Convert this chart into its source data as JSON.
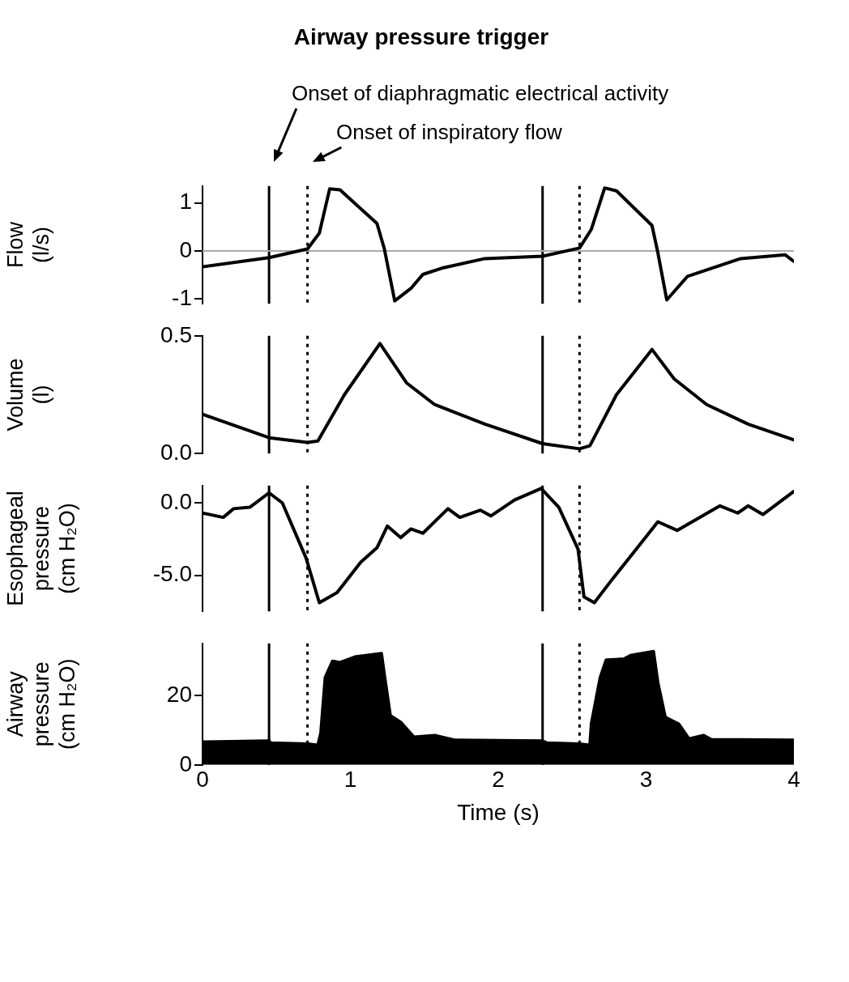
{
  "chart_data": [
    {
      "type": "line",
      "title": "Airway pressure trigger",
      "annotations": [
        "Onset of diaphragmatic electrical activity",
        "Onset of inspiratory flow"
      ],
      "ylabel": "Flow (l/s)",
      "color": "#000000",
      "marker": "none",
      "tick_labels": "y",
      "x": [
        0,
        0.45,
        0.71,
        0.79,
        0.86,
        0.93,
        1.18,
        1.23,
        1.3,
        1.41,
        1.49,
        1.63,
        1.91,
        2.3,
        2.55,
        2.63,
        2.72,
        2.8,
        3.04,
        3.08,
        3.14,
        3.28,
        3.64,
        3.94,
        4.0
      ],
      "values": [
        -0.33,
        -0.14,
        0.04,
        0.37,
        1.29,
        1.27,
        0.57,
        0.04,
        -1.04,
        -0.78,
        -0.49,
        -0.35,
        -0.16,
        -0.11,
        0.06,
        0.45,
        1.31,
        1.25,
        0.53,
        -0.04,
        -1.02,
        -0.53,
        -0.16,
        -0.08,
        -0.22
      ],
      "xlim": [
        0,
        4
      ],
      "xticks": [
        0,
        1,
        2,
        3,
        4
      ],
      "ylim": [
        -1.1,
        1.35
      ],
      "yticks": [
        -1,
        0,
        1
      ],
      "ref_lines": [
        {
          "axis": "x",
          "value": 0.45,
          "color": "#000000",
          "line_style": "solid"
        },
        {
          "axis": "x",
          "value": 0.71,
          "color": "#000000",
          "line_style": "dotted"
        },
        {
          "axis": "x",
          "value": 2.3,
          "color": "#000000",
          "line_style": "solid"
        },
        {
          "axis": "x",
          "value": 2.55,
          "color": "#000000",
          "line_style": "dotted"
        },
        {
          "axis": "y",
          "value": 0,
          "color": "#aaaaaa",
          "line_style": "solid"
        }
      ]
    },
    {
      "type": "line",
      "ylabel": "Volume (l)",
      "color": "#000000",
      "marker": "none",
      "tick_labels": "y",
      "x": [
        0,
        0.45,
        0.71,
        0.78,
        0.96,
        1.2,
        1.38,
        1.57,
        1.91,
        2.3,
        2.55,
        2.62,
        2.8,
        3.04,
        3.19,
        3.41,
        3.69,
        4.0
      ],
      "values": [
        0.167,
        0.067,
        0.047,
        0.053,
        0.25,
        0.467,
        0.3,
        0.208,
        0.125,
        0.042,
        0.02,
        0.033,
        0.25,
        0.442,
        0.317,
        0.208,
        0.125,
        0.058
      ],
      "xlim": [
        0,
        4
      ],
      "xticks": [
        0,
        1,
        2,
        3,
        4
      ],
      "ylim": [
        0,
        0.5
      ],
      "yticks": [
        {
          "value": 0,
          "label": "0.0"
        },
        {
          "value": 0.5,
          "label": "0.5"
        }
      ],
      "ref_lines": [
        {
          "axis": "x",
          "value": 0.45,
          "color": "#000000",
          "line_style": "solid"
        },
        {
          "axis": "x",
          "value": 0.71,
          "color": "#000000",
          "line_style": "dotted"
        },
        {
          "axis": "x",
          "value": 2.3,
          "color": "#000000",
          "line_style": "solid"
        },
        {
          "axis": "x",
          "value": 2.55,
          "color": "#000000",
          "line_style": "dotted"
        }
      ]
    },
    {
      "type": "line",
      "ylabel": "Esophageal pressure (cm H₂O)",
      "color": "#000000",
      "marker": "none",
      "tick_labels": "y",
      "x": [
        0,
        0.14,
        0.21,
        0.32,
        0.45,
        0.54,
        0.7,
        0.79,
        0.91,
        1.07,
        1.18,
        1.25,
        1.34,
        1.41,
        1.49,
        1.66,
        1.74,
        1.88,
        1.95,
        2.11,
        2.29,
        2.41,
        2.54,
        2.58,
        2.65,
        2.77,
        2.91,
        3.08,
        3.21,
        3.5,
        3.62,
        3.69,
        3.79,
        4.0
      ],
      "values": [
        -0.7,
        -1.0,
        -0.4,
        -0.3,
        0.7,
        0,
        -3.8,
        -6.9,
        -6.2,
        -4.1,
        -3.1,
        -1.6,
        -2.4,
        -1.8,
        -2.1,
        -0.4,
        -1.0,
        -0.5,
        -0.9,
        0.2,
        1.0,
        -0.3,
        -3.2,
        -6.5,
        -6.9,
        -5.3,
        -3.5,
        -1.3,
        -1.9,
        -0.2,
        -0.7,
        -0.2,
        -0.8,
        0.8
      ],
      "xlim": [
        0,
        4
      ],
      "xticks": [
        0,
        1,
        2,
        3,
        4
      ],
      "ylim": [
        -7.5,
        1.2
      ],
      "yticks": [
        {
          "value": -5,
          "label": "-5.0"
        },
        {
          "value": 0,
          "label": "0.0"
        }
      ],
      "ref_lines": [
        {
          "axis": "x",
          "value": 0.45,
          "color": "#000000",
          "line_style": "solid"
        },
        {
          "axis": "x",
          "value": 0.71,
          "color": "#000000",
          "line_style": "dotted"
        },
        {
          "axis": "x",
          "value": 2.3,
          "color": "#000000",
          "line_style": "solid"
        },
        {
          "axis": "x",
          "value": 2.55,
          "color": "#000000",
          "line_style": "dotted"
        }
      ]
    },
    {
      "type": "area",
      "ylabel": "Airway pressure (cm H₂O)",
      "xlabel": "Time (s)",
      "color": "#000000",
      "marker": "none",
      "x": [
        0,
        0.45,
        0.46,
        0.71,
        0.78,
        0.8,
        0.83,
        0.88,
        0.93,
        1.03,
        1.21,
        1.23,
        1.27,
        1.34,
        1.43,
        1.57,
        1.71,
        2.3,
        2.33,
        2.55,
        2.62,
        2.63,
        2.69,
        2.73,
        2.85,
        2.9,
        3.05,
        3.08,
        3.13,
        3.22,
        3.29,
        3.39,
        3.44,
        4.0
      ],
      "values": [
        6.6,
        6.9,
        6.3,
        6.0,
        5.7,
        9.1,
        25.2,
        29.9,
        29.5,
        31.1,
        32.1,
        25.9,
        14.2,
        12.3,
        8.0,
        8.5,
        7.1,
        6.9,
        6.3,
        6.0,
        5.7,
        11.8,
        25.2,
        30.2,
        30.5,
        31.6,
        32.7,
        23.6,
        13.7,
        11.8,
        7.5,
        8.5,
        7.3,
        7.1
      ],
      "xlim": [
        0,
        4
      ],
      "xticks": [
        0,
        1,
        2,
        3,
        4
      ],
      "ylim": [
        0,
        35
      ],
      "yticks": [
        0,
        20
      ],
      "ref_lines": [
        {
          "axis": "x",
          "value": 0.45,
          "color": "#000000",
          "line_style": "solid"
        },
        {
          "axis": "x",
          "value": 0.71,
          "color": "#000000",
          "line_style": "dotted"
        },
        {
          "axis": "x",
          "value": 2.3,
          "color": "#000000",
          "line_style": "solid"
        },
        {
          "axis": "x",
          "value": 2.55,
          "color": "#000000",
          "line_style": "dotted"
        }
      ]
    }
  ]
}
